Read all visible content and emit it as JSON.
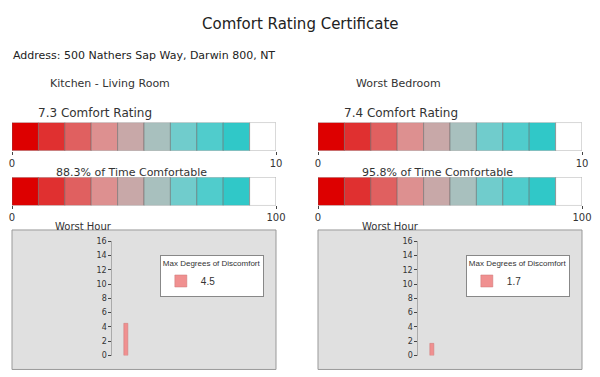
{
  "title": "Comfort Rating Certificate",
  "subtitle": "Address: 500 Nathers Sap Way, Darwin 800, NT",
  "chart_data": [
    {
      "type": "color_bar",
      "title": "Kitchen - Living Room",
      "subtitle": "7.3 Comfort Rating",
      "colors": [
        "#dd0000",
        "#e03030",
        "#e06060",
        "#dd9090",
        "#c8a8a8",
        "#a8c0be",
        "#70cccc",
        "#50cccc",
        "#30c8c8",
        "#ffffff"
      ],
      "xlim": [
        0,
        10
      ],
      "xticks": [
        0,
        10
      ],
      "grid": false
    },
    {
      "type": "color_bar",
      "title": "88.3% of Time Comfortable",
      "colors": [
        "#dd0000",
        "#e03030",
        "#e06060",
        "#dd9090",
        "#c8a8a8",
        "#a8c0be",
        "#70cccc",
        "#50cccc",
        "#30c8c8",
        "#ffffff"
      ],
      "xlim": [
        0,
        100
      ],
      "xticks": [
        0,
        100
      ],
      "grid": false
    },
    {
      "type": "bar",
      "title": "Worst Hour",
      "categories": [
        null
      ],
      "series": [
        {
          "name": "4.5",
          "color": "#f09090",
          "values": [
            4.5
          ]
        }
      ],
      "ylim": [
        0,
        16
      ],
      "yticks": [
        0,
        2,
        4,
        6,
        8,
        10,
        12,
        14,
        16
      ],
      "tick_labels": "y",
      "grid": false,
      "legend": "upper right",
      "annotations": [
        "Max Degrees of Discomfort"
      ]
    },
    {
      "type": "color_bar",
      "title": "Worst Bedroom",
      "subtitle": "7.4 Comfort Rating",
      "colors": [
        "#dd0000",
        "#e03030",
        "#e06060",
        "#dd9090",
        "#c8a8a8",
        "#a8c0be",
        "#70cccc",
        "#50cccc",
        "#30c8c8",
        "#ffffff"
      ],
      "xlim": [
        0,
        10
      ],
      "xticks": [
        0,
        10
      ],
      "grid": false
    },
    {
      "type": "color_bar",
      "title": "95.8% of Time Comfortable",
      "colors": [
        "#dd0000",
        "#e03030",
        "#e06060",
        "#dd9090",
        "#c8a8a8",
        "#a8c0be",
        "#70cccc",
        "#50cccc",
        "#30c8c8",
        "#ffffff"
      ],
      "xlim": [
        0,
        100
      ],
      "xticks": [
        0,
        100
      ],
      "grid": false
    },
    {
      "type": "bar",
      "title": "Worst Hour",
      "categories": [
        null
      ],
      "series": [
        {
          "name": "1.7",
          "color": "#f09090",
          "values": [
            1.7
          ]
        }
      ],
      "ylim": [
        0,
        16
      ],
      "yticks": [
        0,
        2,
        4,
        6,
        8,
        10,
        12,
        14,
        16
      ],
      "tick_labels": "y",
      "grid": false,
      "legend": "upper right",
      "annotations": [
        "Max Degrees of Discomfort"
      ]
    }
  ]
}
